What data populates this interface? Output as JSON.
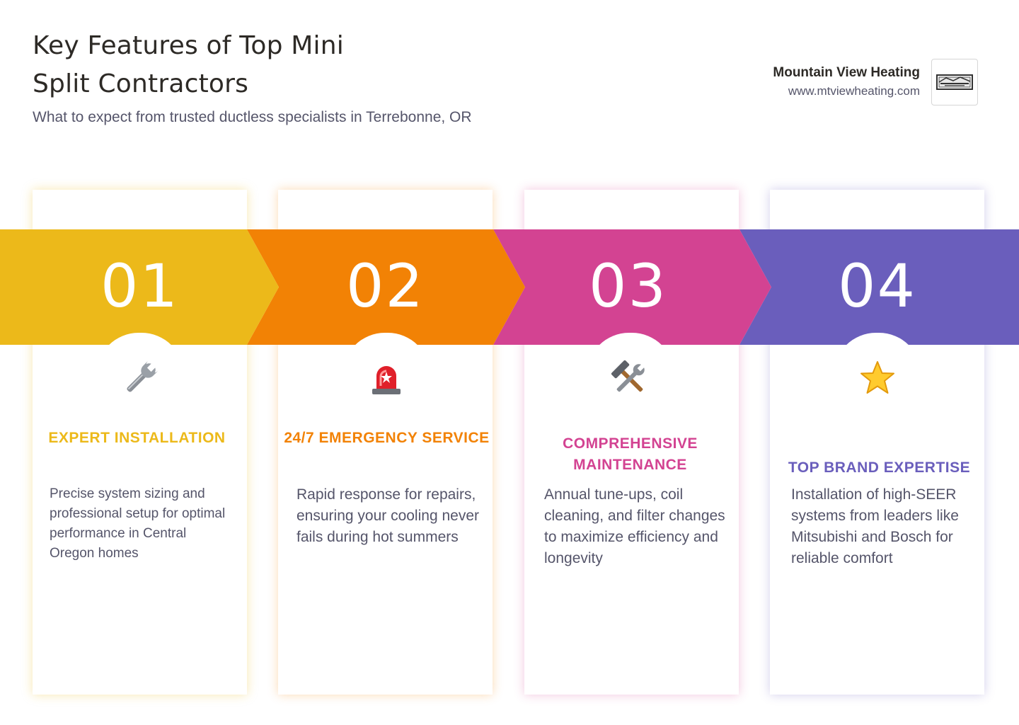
{
  "header": {
    "title": "Key Features of Top Mini Split Contractors",
    "subtitle": "What to expect from trusted ductless specialists in Terrebonne, OR"
  },
  "brand": {
    "name": "Mountain View Heating",
    "url": "www.mtviewheating.com"
  },
  "features": [
    {
      "number": "01",
      "icon": "wrench-icon",
      "title": "EXPERT INSTALLATION",
      "description": "Precise system sizing and professional setup for optimal performance in Central Oregon homes",
      "color": "#ECB91A"
    },
    {
      "number": "02",
      "icon": "siren-icon",
      "title": "24/7 EMERGENCY SERVICE",
      "description": "Rapid response for repairs, ensuring your cooling never fails during hot summers",
      "color": "#F28205"
    },
    {
      "number": "03",
      "icon": "hammer-and-wrench-icon",
      "title": "COMPREHENSIVE MAINTENANCE",
      "description": "Annual tune-ups, coil cleaning, and filter changes to maximize efficiency and longevity",
      "color": "#D34392"
    },
    {
      "number": "04",
      "icon": "star-icon",
      "title": "TOP BRAND EXPERTISE",
      "description": "Installation of high-SEER systems from leaders like Mitsubishi and Bosch for reliable comfort",
      "color": "#6A5EBC"
    }
  ]
}
